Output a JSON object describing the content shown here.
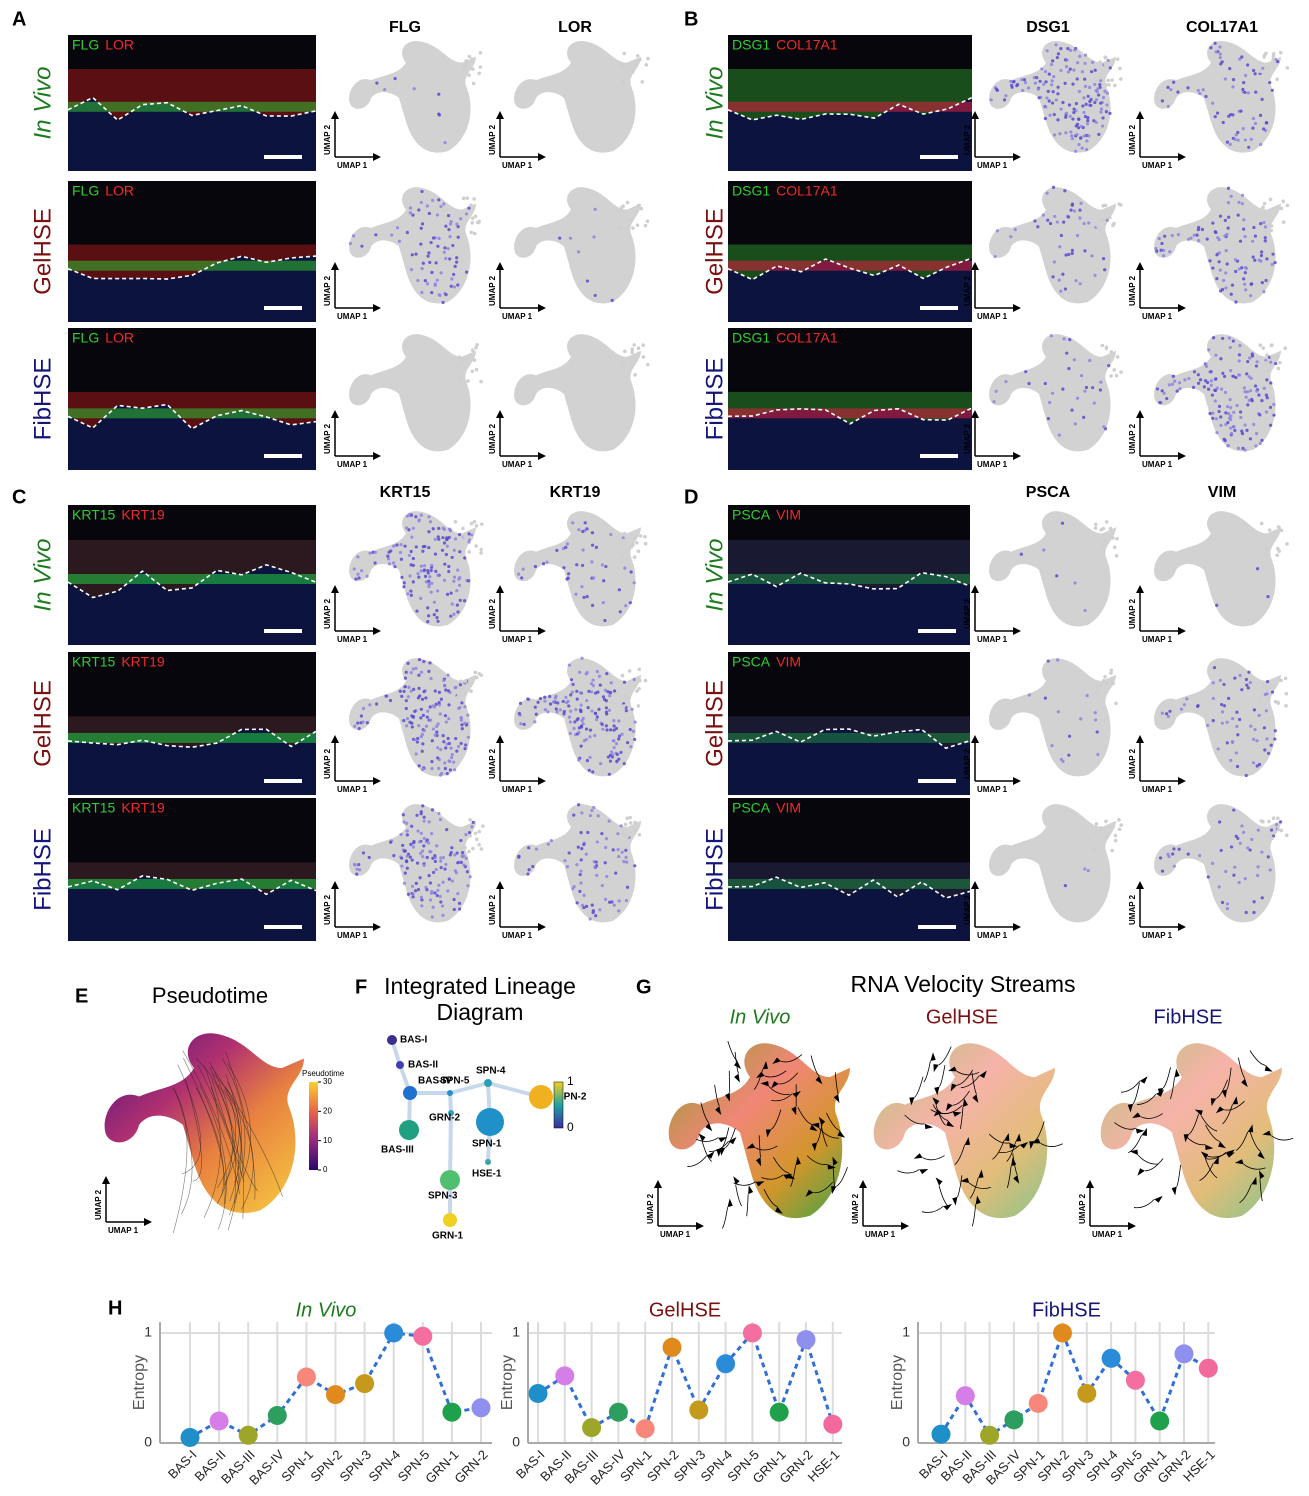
{
  "panels": [
    {
      "letter": "A",
      "genes": [
        "FLG",
        "LOR"
      ],
      "markers": [
        "FLG",
        "LOR"
      ]
    },
    {
      "letter": "B",
      "genes": [
        "DSG1",
        "COL17A1"
      ],
      "markers": [
        "DSG1",
        "COL17A1"
      ]
    },
    {
      "letter": "C",
      "genes": [
        "KRT15",
        "KRT19"
      ],
      "markers": [
        "KRT15",
        "KRT19"
      ]
    },
    {
      "letter": "D",
      "genes": [
        "PSCA",
        "VIM"
      ],
      "markers": [
        "PSCA",
        "VIM"
      ]
    }
  ],
  "conditions": [
    {
      "label": "In Vivo",
      "color": "#1e7a1e",
      "italic": true
    },
    {
      "label": "GelHSE",
      "color": "#7a1010",
      "italic": false
    },
    {
      "label": "FibHSE",
      "color": "#14147a",
      "italic": false
    }
  ],
  "umap_axis": {
    "x": "UMAP 1",
    "y": "UMAP 2"
  },
  "pseudotime": {
    "letter": "E",
    "title": "Pseudotime",
    "legend_title": "Pseudotime",
    "colorbar_ticks": [
      0,
      10,
      20,
      30
    ]
  },
  "lineage": {
    "letter": "F",
    "title_lines": [
      "Integrated Lineage",
      "Diagram"
    ],
    "nodes": [
      "BAS-I",
      "BAS-II",
      "BAS-IV",
      "SPN-5",
      "SPN-4",
      "SPN-2",
      "BAS-III",
      "GRN-2",
      "SPN-1",
      "SPN-3",
      "HSE-1",
      "GRN-1"
    ],
    "colorbar_ticks": [
      0,
      1
    ]
  },
  "velocity": {
    "letter": "G",
    "title": "RNA Velocity Streams"
  },
  "entropy_letter": "H",
  "chart_data": [
    {
      "type": "line",
      "title": "In Vivo",
      "title_color": "#1e7a1e",
      "ylabel": "Entropy",
      "categories": [
        "BAS-I",
        "BAS-II",
        "BAS-III",
        "BAS-IV",
        "SPN-1",
        "SPN-2",
        "SPN-3",
        "SPN-4",
        "SPN-5",
        "GRN-1",
        "GRN-2"
      ],
      "values": [
        0.05,
        0.2,
        0.07,
        0.25,
        0.6,
        0.44,
        0.54,
        1.0,
        0.97,
        0.28,
        0.32
      ],
      "point_colors": [
        "#1f8fc9",
        "#d57ee8",
        "#9ea62a",
        "#2e9e5e",
        "#f7877a",
        "#e08a1e",
        "#c59a1c",
        "#2a8bd8",
        "#f46ea0",
        "#1fa04a",
        "#8f8fef"
      ],
      "color": "#2f6fd6",
      "ylim": [
        0,
        1.1
      ],
      "yticks": [
        0,
        1
      ],
      "grid": true
    },
    {
      "type": "line",
      "title": "GelHSE",
      "title_color": "#7a1010",
      "ylabel": "Entropy",
      "categories": [
        "BAS-I",
        "BAS-II",
        "BAS-III",
        "BAS-IV",
        "SPN-1",
        "SPN-2",
        "SPN-3",
        "SPN-4",
        "SPN-5",
        "GRN-1",
        "GRN-2",
        "HSE-1"
      ],
      "values": [
        0.45,
        0.61,
        0.14,
        0.28,
        0.13,
        0.87,
        0.3,
        0.72,
        1.0,
        0.28,
        0.94,
        0.17
      ],
      "point_colors": [
        "#1f8fc9",
        "#d57ee8",
        "#9ea62a",
        "#2e9e5e",
        "#f7877a",
        "#e08a1e",
        "#c59a1c",
        "#2a8bd8",
        "#f46ea0",
        "#1fa04a",
        "#8f8fef",
        "#f2699b"
      ],
      "color": "#2f6fd6",
      "ylim": [
        0,
        1.1
      ],
      "yticks": [
        0,
        1
      ],
      "grid": true
    },
    {
      "type": "line",
      "title": "FibHSE",
      "title_color": "#14147a",
      "ylabel": "Entropy",
      "categories": [
        "BAS-I",
        "BAS-II",
        "BAS-III",
        "BAS-IV",
        "SPN-1",
        "SPN-2",
        "SPN-3",
        "SPN-4",
        "SPN-5",
        "GRN-1",
        "GRN-2",
        "HSE-1"
      ],
      "values": [
        0.08,
        0.43,
        0.07,
        0.21,
        0.36,
        1.0,
        0.45,
        0.77,
        0.57,
        0.2,
        0.81,
        0.68
      ],
      "point_colors": [
        "#1f8fc9",
        "#d57ee8",
        "#9ea62a",
        "#2e9e5e",
        "#f7877a",
        "#e08a1e",
        "#c59a1c",
        "#2a8bd8",
        "#f46ea0",
        "#1fa04a",
        "#8f8fef",
        "#f2699b"
      ],
      "color": "#2f6fd6",
      "ylim": [
        0,
        1.1
      ],
      "yticks": [
        0,
        1
      ],
      "grid": true
    }
  ]
}
